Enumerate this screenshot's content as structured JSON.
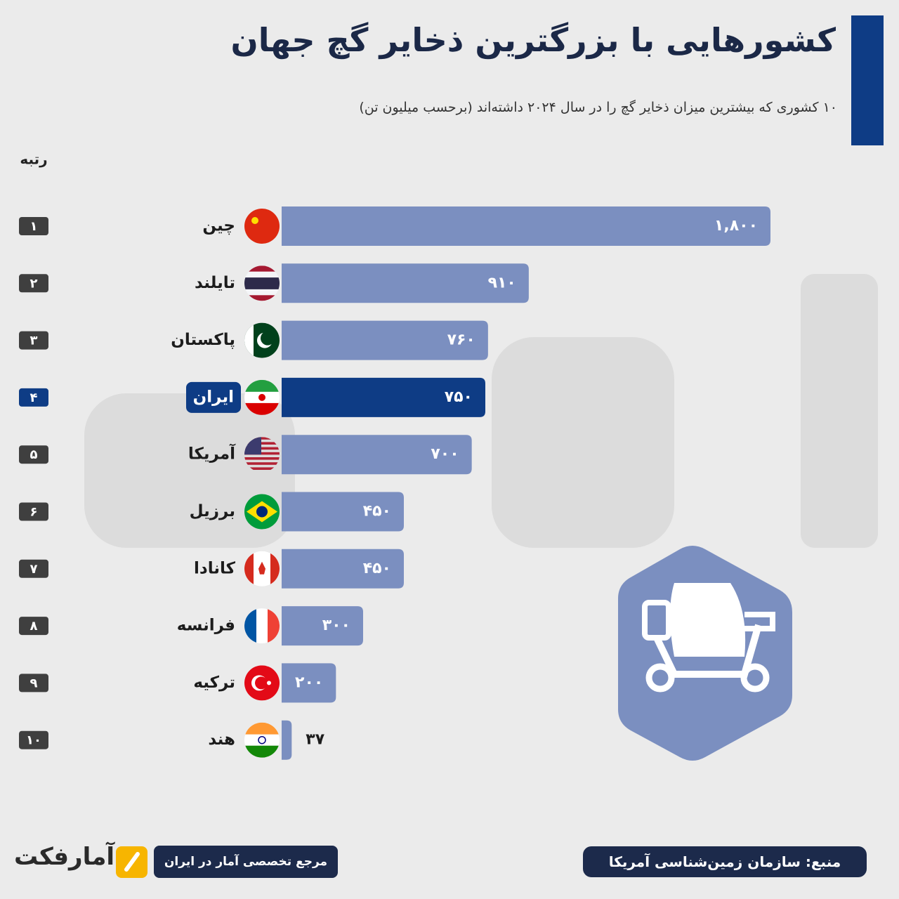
{
  "chart_data": {
    "type": "bar",
    "orientation": "horizontal",
    "title": "کشورهایی با بزرگترین ذخایر گچ جهان",
    "subtitle": "۱۰ کشوری که بیشترین میزان ذخایر گچ را در سال ۲۰۲۴ داشته‌اند (برحسب میلیون تن)",
    "rank_header": "رتبه",
    "ranks": [
      "۱",
      "۲",
      "۳",
      "۴",
      "۵",
      "۶",
      "۷",
      "۸",
      "۹",
      "۱۰"
    ],
    "categories": [
      "چین",
      "تایلند",
      "پاکستان",
      "ایران",
      "آمریکا",
      "برزیل",
      "کانادا",
      "فرانسه",
      "ترکیه",
      "هند"
    ],
    "values": [
      1800,
      910,
      760,
      750,
      700,
      450,
      450,
      300,
      200,
      37
    ],
    "value_labels": [
      "۱,۸۰۰",
      "۹۱۰",
      "۷۶۰",
      "۷۵۰",
      "۷۰۰",
      "۴۵۰",
      "۴۵۰",
      "۳۰۰",
      "۲۰۰",
      "۳۷"
    ],
    "colors": [
      "#7b8fc0",
      "#7b8fc0",
      "#7b8fc0",
      "#0e3c85",
      "#7b8fc0",
      "#7b8fc0",
      "#7b8fc0",
      "#7b8fc0",
      "#7b8fc0",
      "#7b8fc0"
    ],
    "highlight_color": "#0e3c85",
    "xlim": [
      0,
      1800
    ],
    "source": "منبع: سازمان زمین‌شناسی آمریکا",
    "tagline": "مرجع تخصصی آمار در ایران",
    "brand": "آمارفکت"
  }
}
